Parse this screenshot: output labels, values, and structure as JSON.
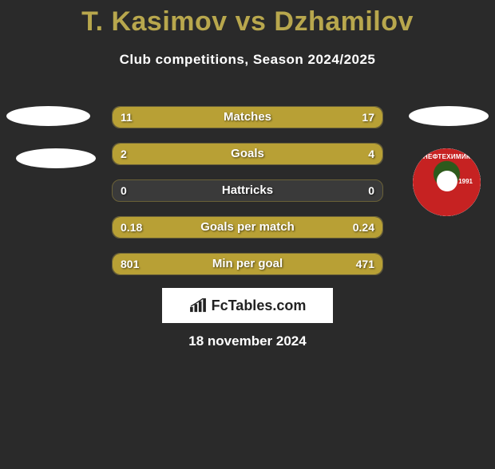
{
  "title": "T. Kasimov vs Dzhamilov",
  "subtitle": "Club competitions, Season 2024/2025",
  "badge": {
    "text": "НЕФТЕХИМИК",
    "year": "1991"
  },
  "bars": [
    {
      "label": "Matches",
      "left_val": "11",
      "right_val": "17",
      "left_pct": 39,
      "right_pct": 61
    },
    {
      "label": "Goals",
      "left_val": "2",
      "right_val": "4",
      "left_pct": 33,
      "right_pct": 67
    },
    {
      "label": "Hattricks",
      "left_val": "0",
      "right_val": "0",
      "left_pct": 0,
      "right_pct": 0
    },
    {
      "label": "Goals per match",
      "left_val": "0.18",
      "right_val": "0.24",
      "left_pct": 43,
      "right_pct": 57
    },
    {
      "label": "Min per goal",
      "left_val": "801",
      "right_val": "471",
      "left_pct": 63,
      "right_pct": 37
    }
  ],
  "logo": {
    "brand": "FcTables",
    "suffix": ".com"
  },
  "date": "18 november 2024",
  "colors": {
    "bg": "#2a2a2a",
    "accent": "#b8a035",
    "title": "#b8a74d",
    "bar_track": "#3a3a3a",
    "badge_red": "#c62222",
    "badge_green": "#2d5a1c"
  }
}
